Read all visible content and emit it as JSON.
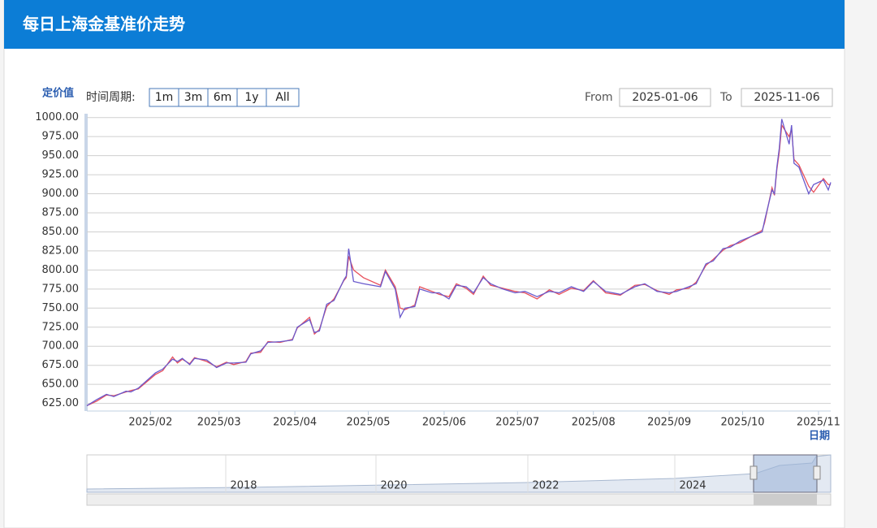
{
  "header": {
    "title": "每日上海金基准价走势"
  },
  "controls": {
    "period_label": "时间周期:",
    "buttons": [
      "1m",
      "3m",
      "6m",
      "1y",
      "All"
    ],
    "from_label": "From",
    "from_value": "2025-01-06",
    "to_label": "To",
    "to_value": "2025-11-06"
  },
  "chart_data": {
    "type": "line",
    "y_label": "定价值",
    "x_label": "日期",
    "x": [
      "2025-01-06",
      "2025-01-10",
      "2025-01-14",
      "2025-01-17",
      "2025-01-22",
      "2025-01-24",
      "2025-01-27",
      "2025-02-03",
      "2025-02-06",
      "2025-02-10",
      "2025-02-12",
      "2025-02-14",
      "2025-02-17",
      "2025-02-19",
      "2025-02-24",
      "2025-02-28",
      "2025-03-04",
      "2025-03-07",
      "2025-03-12",
      "2025-03-14",
      "2025-03-18",
      "2025-03-21",
      "2025-03-26",
      "2025-03-31",
      "2025-04-02",
      "2025-04-07",
      "2025-04-09",
      "2025-04-11",
      "2025-04-14",
      "2025-04-17",
      "2025-04-21",
      "2025-04-22",
      "2025-04-23",
      "2025-04-25",
      "2025-04-29",
      "2025-05-06",
      "2025-05-08",
      "2025-05-12",
      "2025-05-14",
      "2025-05-16",
      "2025-05-20",
      "2025-05-22",
      "2025-05-27",
      "2025-05-30",
      "2025-06-03",
      "2025-06-06",
      "2025-06-10",
      "2025-06-13",
      "2025-06-17",
      "2025-06-20",
      "2025-06-25",
      "2025-06-30",
      "2025-07-04",
      "2025-07-09",
      "2025-07-14",
      "2025-07-18",
      "2025-07-23",
      "2025-07-28",
      "2025-08-01",
      "2025-08-06",
      "2025-08-12",
      "2025-08-18",
      "2025-08-22",
      "2025-08-27",
      "2025-09-01",
      "2025-09-04",
      "2025-09-09",
      "2025-09-12",
      "2025-09-16",
      "2025-09-19",
      "2025-09-23",
      "2025-09-26",
      "2025-09-30",
      "2025-10-09",
      "2025-10-10",
      "2025-10-13",
      "2025-10-14",
      "2025-10-15",
      "2025-10-16",
      "2025-10-17",
      "2025-10-20",
      "2025-10-21",
      "2025-10-22",
      "2025-10-24",
      "2025-10-28",
      "2025-10-30",
      "2025-11-03",
      "2025-11-05",
      "2025-11-06"
    ],
    "series": [
      {
        "color": "#e8505b",
        "values": [
          622,
          628,
          636,
          635,
          640,
          642,
          644,
          663,
          668,
          686,
          678,
          683,
          677,
          685,
          680,
          673,
          679,
          676,
          680,
          691,
          692,
          706,
          705,
          709,
          724,
          738,
          716,
          722,
          752,
          762,
          786,
          790,
          818,
          800,
          790,
          780,
          800,
          778,
          750,
          748,
          754,
          778,
          772,
          768,
          765,
          782,
          776,
          768,
          792,
          780,
          776,
          772,
          770,
          762,
          774,
          768,
          776,
          773,
          786,
          770,
          767,
          780,
          781,
          773,
          768,
          774,
          776,
          784,
          806,
          814,
          826,
          832,
          836,
          852,
          862,
          908,
          898,
          932,
          955,
          990,
          975,
          985,
          945,
          938,
          910,
          902,
          920,
          912,
          912
        ]
      },
      {
        "color": "#6a5acd",
        "values": [
          622,
          630,
          637,
          634,
          641,
          640,
          645,
          665,
          670,
          683,
          680,
          684,
          676,
          684,
          682,
          672,
          678,
          678,
          679,
          690,
          694,
          705,
          706,
          708,
          725,
          735,
          718,
          720,
          755,
          760,
          787,
          792,
          828,
          785,
          782,
          778,
          798,
          775,
          738,
          750,
          752,
          775,
          770,
          770,
          762,
          780,
          778,
          770,
          790,
          782,
          775,
          770,
          772,
          765,
          772,
          770,
          778,
          772,
          785,
          772,
          768,
          778,
          782,
          772,
          770,
          772,
          778,
          782,
          808,
          812,
          828,
          830,
          838,
          850,
          865,
          905,
          900,
          935,
          960,
          998,
          965,
          990,
          940,
          935,
          900,
          912,
          918,
          905,
          915
        ]
      }
    ],
    "xlim": [
      "2025-01-06",
      "2025-11-06"
    ],
    "xticks": [
      {
        "value": "2025-02-01",
        "label": "2025/02"
      },
      {
        "value": "2025-03-01",
        "label": "2025/03"
      },
      {
        "value": "2025-04-01",
        "label": "2025/04"
      },
      {
        "value": "2025-05-01",
        "label": "2025/05"
      },
      {
        "value": "2025-06-01",
        "label": "2025/06"
      },
      {
        "value": "2025-07-01",
        "label": "2025/07"
      },
      {
        "value": "2025-08-01",
        "label": "2025/08"
      },
      {
        "value": "2025-09-01",
        "label": "2025/09"
      },
      {
        "value": "2025-10-01",
        "label": "2025/10"
      },
      {
        "value": "2025-11-01",
        "label": "2025/11"
      }
    ],
    "ylim": [
      615,
      1005
    ],
    "yticks": [
      {
        "value": 625,
        "label": "625.00"
      },
      {
        "value": 650,
        "label": "650.00"
      },
      {
        "value": 675,
        "label": "675.00"
      },
      {
        "value": 700,
        "label": "700.00"
      },
      {
        "value": 725,
        "label": "725.00"
      },
      {
        "value": 750,
        "label": "750.00"
      },
      {
        "value": 775,
        "label": "775.00"
      },
      {
        "value": 800,
        "label": "800.00"
      },
      {
        "value": 825,
        "label": "825.00"
      },
      {
        "value": 850,
        "label": "850.00"
      },
      {
        "value": 875,
        "label": "875.00"
      },
      {
        "value": 900,
        "label": "900.00"
      },
      {
        "value": 925,
        "label": "925.00"
      },
      {
        "value": 950,
        "label": "950.00"
      },
      {
        "value": 975,
        "label": "975.00"
      },
      {
        "value": 1000,
        "label": "1000.00"
      }
    ],
    "grid": true
  },
  "navigator": {
    "labels": [
      "2018",
      "2020",
      "2022",
      "2024"
    ]
  }
}
